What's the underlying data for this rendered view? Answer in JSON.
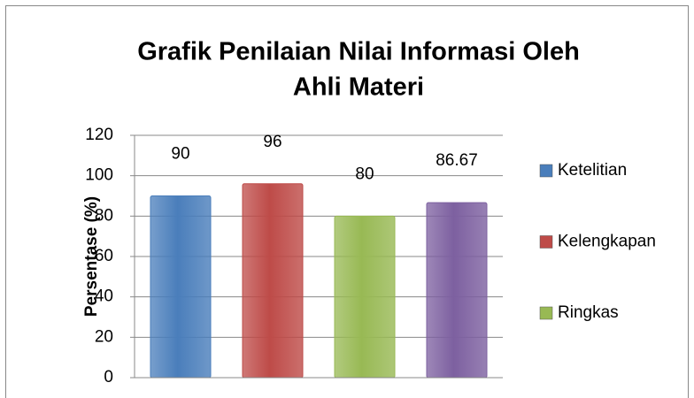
{
  "chart_data": {
    "type": "bar",
    "title": [
      "Grafik Penilaian Nilai Informasi Oleh",
      "Ahli Materi"
    ],
    "y_label": "Persentase (%)",
    "series": [
      {
        "name": "Ketelitian",
        "color": "#4a7ebb",
        "values": [
          90
        ]
      },
      {
        "name": "Kelengkapan",
        "color": "#be4b48",
        "values": [
          96
        ]
      },
      {
        "name": "Ringkas",
        "color": "#98b954",
        "values": [
          80
        ]
      },
      {
        "name": null,
        "color": "#7d60a0",
        "values": [
          86.67
        ]
      }
    ],
    "ylim": [
      0,
      120
    ],
    "yticks": [
      0,
      20,
      40,
      60,
      80,
      100,
      120
    ],
    "grid": true,
    "legend": "right"
  }
}
